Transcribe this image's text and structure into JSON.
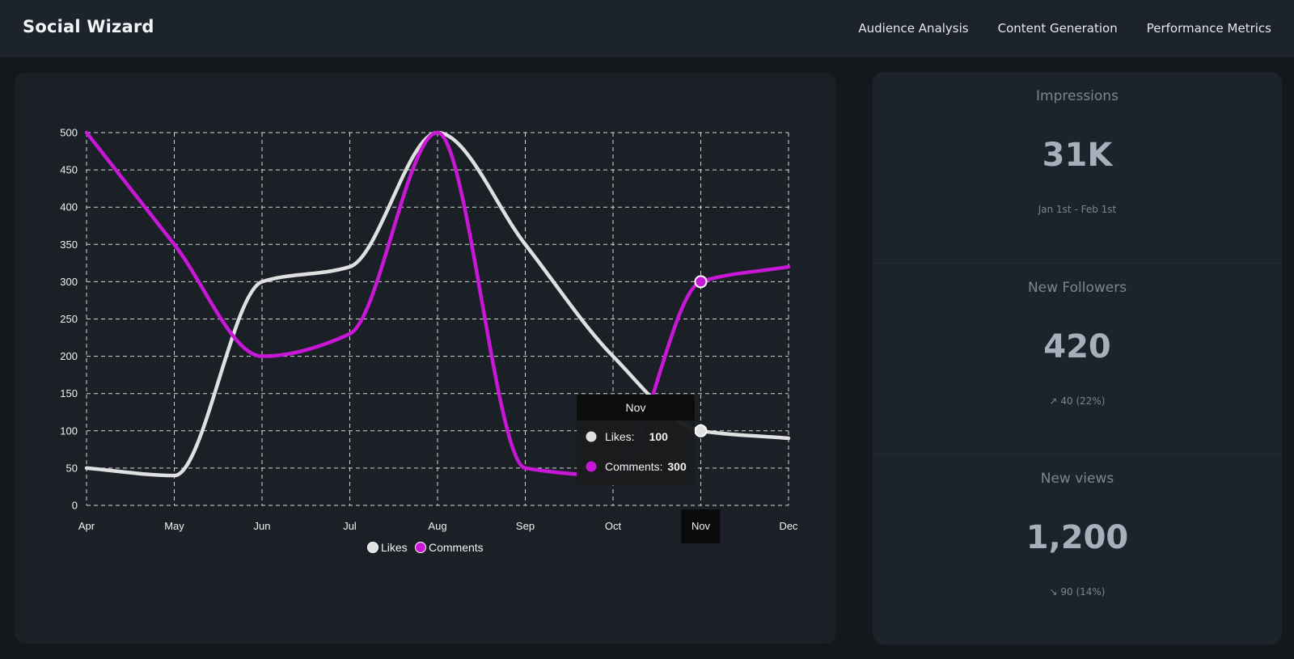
{
  "app": {
    "brand": "Social Wizard",
    "nav": [
      "Audience Analysis",
      "Content Generation",
      "Performance Metrics"
    ]
  },
  "colors": {
    "background": "#14181d",
    "card": "#1b2027",
    "likes": "#e0e0e0",
    "comments": "#c817d6",
    "grid": "#e8e8e8",
    "tooltip_bg": "#0c0c0d"
  },
  "chart_data": {
    "type": "line",
    "categories": [
      "Apr",
      "May",
      "Jun",
      "Jul",
      "Aug",
      "Sep",
      "Oct",
      "Nov",
      "Dec"
    ],
    "ylim": [
      0,
      500
    ],
    "yticks": [
      0,
      50,
      100,
      150,
      200,
      250,
      300,
      350,
      400,
      450,
      500
    ],
    "grid": true,
    "legend_placement": "bottom",
    "series": [
      {
        "name": "Likes",
        "values": [
          50,
          40,
          300,
          320,
          500,
          350,
          200,
          100,
          90
        ]
      },
      {
        "name": "Comments",
        "values": [
          500,
          350,
          200,
          230,
          500,
          50,
          40,
          300,
          320
        ]
      }
    ],
    "tooltip": {
      "title": "Nov",
      "rows": [
        {
          "label": "Likes:",
          "value": "100"
        },
        {
          "label": "Comments:",
          "value": "300"
        }
      ]
    },
    "highlighted_category": "Nov"
  },
  "stats": [
    {
      "title": "Impressions",
      "value": "31K",
      "desc": "Jan 1st - Feb 1st"
    },
    {
      "title": "New Followers",
      "value": "420",
      "desc": "↗︎ 40 (22%)"
    },
    {
      "title": "New views",
      "value": "1,200",
      "desc": "↘︎ 90 (14%)"
    }
  ]
}
